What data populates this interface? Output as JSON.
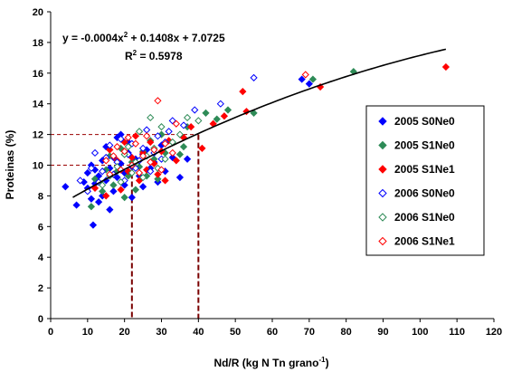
{
  "chart_data": {
    "type": "scatter",
    "xlabel": "Nd/R (kg N Tn grano",
    "xlabel_sup": "-1",
    "xlabel_close": ")",
    "ylabel": "Proteinas (%)",
    "xlim": [
      0,
      120
    ],
    "ylim": [
      0,
      20
    ],
    "xticks": [
      "0",
      "10",
      "20",
      "30",
      "40",
      "50",
      "60",
      "70",
      "80",
      "90",
      "100",
      "110",
      "120"
    ],
    "yticks": [
      "0",
      "2",
      "4",
      "6",
      "8",
      "10",
      "12",
      "14",
      "16",
      "18",
      "20"
    ],
    "grid": false,
    "legend_position": "right",
    "equation": {
      "line1_prefix": "y = -0.0004x",
      "line1_sup": "2",
      "line1_suffix": " + 0.1408x + 7.0725",
      "r2_prefix": "R",
      "r2_sup": "2",
      "r2_suffix": " = 0.5978"
    },
    "trendline": {
      "a": -0.0004,
      "b": 0.1408,
      "c": 7.0725,
      "x_range": [
        6,
        107
      ]
    },
    "reference_lines": [
      {
        "x": 22,
        "y": 10
      },
      {
        "x": 40,
        "y": 12
      }
    ],
    "series": [
      {
        "name": "2005 S0Ne0",
        "color": "#0000ff",
        "marker": "diamond",
        "filled": true,
        "points": [
          [
            4,
            8.6
          ],
          [
            7,
            7.4
          ],
          [
            9,
            8.9
          ],
          [
            10,
            9.5
          ],
          [
            10,
            8.5
          ],
          [
            11,
            10.0
          ],
          [
            11,
            7.8
          ],
          [
            11.5,
            6.1
          ],
          [
            12,
            9.7
          ],
          [
            12,
            8.8
          ],
          [
            13,
            9.3
          ],
          [
            13,
            7.6
          ],
          [
            14,
            10.3
          ],
          [
            14,
            8.0
          ],
          [
            15,
            9.0
          ],
          [
            15,
            11.2
          ],
          [
            16,
            9.8
          ],
          [
            16,
            7.1
          ],
          [
            17,
            10.5
          ],
          [
            17,
            8.3
          ],
          [
            18,
            11.8
          ],
          [
            18,
            9.2
          ],
          [
            19,
            12.0
          ],
          [
            19,
            10.1
          ],
          [
            20,
            9.5
          ],
          [
            20,
            8.7
          ],
          [
            21,
            10.8
          ],
          [
            21,
            11.5
          ],
          [
            22,
            9.9
          ],
          [
            22,
            7.9
          ],
          [
            23,
            10.4
          ],
          [
            24,
            9.3
          ],
          [
            25,
            10.7
          ],
          [
            25,
            8.6
          ],
          [
            26,
            11.0
          ],
          [
            27,
            9.8
          ],
          [
            28,
            10.2
          ],
          [
            29,
            8.9
          ],
          [
            30,
            11.3
          ],
          [
            31,
            9.6
          ],
          [
            33,
            10.5
          ],
          [
            35,
            9.2
          ],
          [
            37,
            10.4
          ],
          [
            68,
            15.6
          ],
          [
            70,
            15.3
          ]
        ]
      },
      {
        "name": "2005 S1Ne0",
        "color": "#2e8b57",
        "marker": "diamond",
        "filled": true,
        "points": [
          [
            11,
            7.3
          ],
          [
            12,
            9.1
          ],
          [
            14,
            8.3
          ],
          [
            15,
            9.7
          ],
          [
            16,
            10.6
          ],
          [
            17,
            8.7
          ],
          [
            18,
            9.6
          ],
          [
            19,
            11.1
          ],
          [
            20,
            7.9
          ],
          [
            21,
            9.3
          ],
          [
            22,
            10.2
          ],
          [
            23,
            8.4
          ],
          [
            24,
            9.9
          ],
          [
            25,
            10.9
          ],
          [
            26,
            9.3
          ],
          [
            27,
            11.6
          ],
          [
            28,
            10.4
          ],
          [
            29,
            9.1
          ],
          [
            30,
            12.0
          ],
          [
            31,
            10.8
          ],
          [
            33,
            11.5
          ],
          [
            35,
            10.7
          ],
          [
            36,
            11.2
          ],
          [
            37,
            12.5
          ],
          [
            42,
            13.4
          ],
          [
            45,
            13.0
          ],
          [
            48,
            13.6
          ],
          [
            55,
            13.4
          ],
          [
            71,
            15.6
          ],
          [
            82,
            16.1
          ]
        ]
      },
      {
        "name": "2005 S1Ne1",
        "color": "#ff0000",
        "marker": "diamond",
        "filled": true,
        "points": [
          [
            12,
            8.5
          ],
          [
            15,
            8.0
          ],
          [
            16,
            11.0
          ],
          [
            17,
            9.4
          ],
          [
            18,
            10.3
          ],
          [
            19,
            8.4
          ],
          [
            20,
            11.5
          ],
          [
            21,
            9.6
          ],
          [
            22,
            10.5
          ],
          [
            23,
            11.9
          ],
          [
            24,
            9.0
          ],
          [
            25,
            10.8
          ],
          [
            26,
            9.7
          ],
          [
            27,
            11.5
          ],
          [
            28,
            10.1
          ],
          [
            29,
            9.4
          ],
          [
            30,
            10.9
          ],
          [
            31,
            9.0
          ],
          [
            32,
            11.6
          ],
          [
            34,
            10.3
          ],
          [
            36,
            11.8
          ],
          [
            38,
            12.5
          ],
          [
            41,
            11.1
          ],
          [
            44,
            12.7
          ],
          [
            47,
            13.2
          ],
          [
            52,
            14.8
          ],
          [
            53,
            13.5
          ],
          [
            73,
            15.1
          ],
          [
            107,
            16.4
          ]
        ]
      },
      {
        "name": "2006 S0Ne0",
        "color": "#0000ff",
        "marker": "diamond",
        "filled": false,
        "points": [
          [
            8,
            9.0
          ],
          [
            10,
            8.3
          ],
          [
            11,
            9.8
          ],
          [
            12,
            10.8
          ],
          [
            13,
            8.9
          ],
          [
            14,
            9.6
          ],
          [
            15,
            10.5
          ],
          [
            16,
            11.3
          ],
          [
            17,
            9.4
          ],
          [
            18,
            10.2
          ],
          [
            19,
            11.7
          ],
          [
            20,
            9.0
          ],
          [
            21,
            10.7
          ],
          [
            22,
            11.4
          ],
          [
            23,
            9.8
          ],
          [
            24,
            10.3
          ],
          [
            25,
            11.1
          ],
          [
            26,
            12.3
          ],
          [
            27,
            9.6
          ],
          [
            28,
            10.8
          ],
          [
            29,
            11.9
          ],
          [
            30,
            10.4
          ],
          [
            31,
            11.5
          ],
          [
            32,
            12.2
          ],
          [
            33,
            12.9
          ],
          [
            36,
            12.6
          ],
          [
            39,
            13.6
          ],
          [
            46,
            14.0
          ],
          [
            55,
            15.7
          ]
        ]
      },
      {
        "name": "2006 S1Ne0",
        "color": "#2e8b57",
        "marker": "diamond",
        "filled": false,
        "points": [
          [
            14,
            8.7
          ],
          [
            16,
            9.3
          ],
          [
            18,
            9.9
          ],
          [
            19,
            8.9
          ],
          [
            20,
            10.7
          ],
          [
            21,
            11.2
          ],
          [
            22,
            9.5
          ],
          [
            23,
            10.2
          ],
          [
            24,
            12.2
          ],
          [
            25,
            9.2
          ],
          [
            26,
            10.6
          ],
          [
            27,
            13.1
          ],
          [
            28,
            11.1
          ],
          [
            29,
            9.8
          ],
          [
            30,
            12.5
          ],
          [
            31,
            10.4
          ],
          [
            33,
            11.5
          ],
          [
            35,
            12.0
          ],
          [
            37,
            13.1
          ],
          [
            40,
            12.9
          ]
        ]
      },
      {
        "name": "2006 S1Ne1",
        "color": "#ff0000",
        "marker": "diamond",
        "filled": false,
        "points": [
          [
            15,
            10.3
          ],
          [
            16,
            9.4
          ],
          [
            17,
            10.6
          ],
          [
            18,
            11.2
          ],
          [
            19,
            9.7
          ],
          [
            20,
            10.9
          ],
          [
            21,
            11.8
          ],
          [
            22,
            10.0
          ],
          [
            23,
            11.4
          ],
          [
            24,
            9.5
          ],
          [
            25,
            10.6
          ],
          [
            26,
            11.9
          ],
          [
            27,
            10.2
          ],
          [
            28,
            11.0
          ],
          [
            29,
            14.2
          ],
          [
            30,
            9.7
          ],
          [
            31,
            11.4
          ],
          [
            33,
            10.8
          ],
          [
            34,
            12.7
          ],
          [
            69,
            15.9
          ]
        ]
      }
    ]
  }
}
